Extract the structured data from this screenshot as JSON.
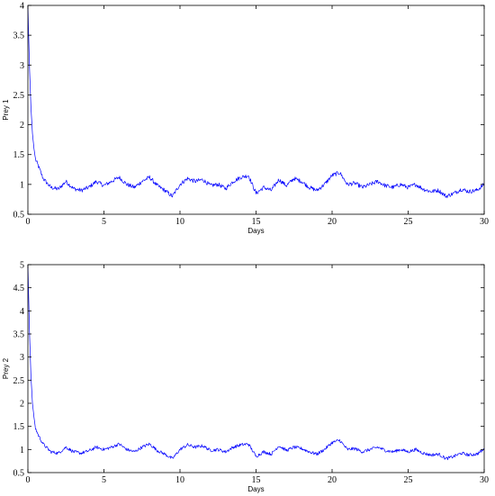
{
  "chart_data": [
    {
      "type": "line",
      "title": "",
      "xlabel": "Days",
      "ylabel": "Prey 1",
      "xlim": [
        0,
        30
      ],
      "ylim": [
        0.5,
        4
      ],
      "xticks": [
        0,
        5,
        10,
        15,
        20,
        25,
        30
      ],
      "yticks": [
        0.5,
        1,
        1.5,
        2,
        2.5,
        3,
        3.5,
        4
      ],
      "xtick_labels": [
        "0",
        "5",
        "10",
        "15",
        "20",
        "25",
        "30"
      ],
      "ytick_labels": [
        "0.5",
        "1",
        "1.5",
        "2",
        "2.5",
        "3",
        "3.5",
        "4"
      ],
      "grid": false,
      "legend": "none",
      "color": "#0000ff",
      "series": [
        {
          "x": [
            0,
            0.1,
            0.2,
            0.3,
            0.4,
            0.5,
            0.7,
            1,
            1.5,
            2,
            2.5,
            3,
            3.5,
            4,
            4.5,
            5,
            5.5,
            6,
            6.5,
            7,
            7.5,
            8,
            8.5,
            9,
            9.5,
            10,
            10.5,
            11,
            11.5,
            12,
            12.5,
            13,
            13.5,
            14,
            14.5,
            15,
            15.5,
            16,
            16.5,
            17,
            17.5,
            18,
            18.5,
            19,
            19.5,
            20,
            20.5,
            21,
            21.5,
            22,
            22.5,
            23,
            23.5,
            24,
            24.5,
            25,
            25.5,
            26,
            26.5,
            27,
            27.5,
            28,
            28.5,
            29,
            29.5,
            30
          ],
          "values": [
            4.0,
            3.0,
            2.3,
            1.85,
            1.6,
            1.42,
            1.3,
            1.1,
            0.95,
            0.92,
            1.05,
            0.93,
            0.9,
            0.95,
            1.05,
            0.98,
            1.05,
            1.12,
            1.0,
            0.95,
            1.05,
            1.12,
            0.98,
            0.9,
            0.8,
            1.0,
            1.1,
            1.05,
            1.08,
            0.98,
            1.0,
            0.93,
            1.05,
            1.12,
            1.15,
            0.85,
            0.95,
            0.9,
            1.08,
            0.98,
            1.1,
            1.05,
            0.95,
            0.9,
            1.0,
            1.15,
            1.2,
            1.0,
            1.02,
            0.95,
            1.0,
            1.05,
            0.98,
            0.95,
            1.0,
            0.95,
            1.0,
            0.92,
            0.88,
            0.9,
            0.8,
            0.85,
            0.92,
            0.88,
            0.9,
            1.0
          ]
        }
      ]
    },
    {
      "type": "line",
      "title": "",
      "xlabel": "Days",
      "ylabel": "Prey 2",
      "xlim": [
        0,
        30
      ],
      "ylim": [
        0.5,
        5
      ],
      "xticks": [
        0,
        5,
        10,
        15,
        20,
        25,
        30
      ],
      "yticks": [
        0.5,
        1,
        1.5,
        2,
        2.5,
        3,
        3.5,
        4,
        4.5,
        5
      ],
      "xtick_labels": [
        "0",
        "5",
        "10",
        "15",
        "20",
        "25",
        "30"
      ],
      "ytick_labels": [
        "0.5",
        "1",
        "1.5",
        "2",
        "2.5",
        "3",
        "3.5",
        "4",
        "4.5",
        "5"
      ],
      "grid": false,
      "legend": "none",
      "color": "#0000ff",
      "series": [
        {
          "x": [
            0,
            0.1,
            0.2,
            0.3,
            0.4,
            0.5,
            0.7,
            1,
            1.5,
            2,
            2.5,
            3,
            3.5,
            4,
            4.5,
            5,
            5.5,
            6,
            6.5,
            7,
            7.5,
            8,
            8.5,
            9,
            9.5,
            10,
            10.5,
            11,
            11.5,
            12,
            12.5,
            13,
            13.5,
            14,
            14.5,
            15,
            15.5,
            16,
            16.5,
            17,
            17.5,
            18,
            18.5,
            19,
            19.5,
            20,
            20.5,
            21,
            21.5,
            22,
            22.5,
            23,
            23.5,
            24,
            24.5,
            25,
            25.5,
            26,
            26.5,
            27,
            27.5,
            28,
            28.5,
            29,
            29.5,
            30
          ],
          "values": [
            5.0,
            3.6,
            2.6,
            2.0,
            1.7,
            1.45,
            1.3,
            1.12,
            0.95,
            0.92,
            1.05,
            0.95,
            0.92,
            0.97,
            1.05,
            1.0,
            1.05,
            1.12,
            1.0,
            0.95,
            1.05,
            1.12,
            0.98,
            0.9,
            0.8,
            1.0,
            1.1,
            1.05,
            1.08,
            0.98,
            1.0,
            0.95,
            1.05,
            1.1,
            1.12,
            0.85,
            0.95,
            0.9,
            1.08,
            0.98,
            1.05,
            1.02,
            0.95,
            0.9,
            1.0,
            1.15,
            1.2,
            1.0,
            1.02,
            0.95,
            1.0,
            1.05,
            0.98,
            0.95,
            1.0,
            0.95,
            1.0,
            0.92,
            0.88,
            0.9,
            0.8,
            0.85,
            0.92,
            0.88,
            0.9,
            1.0
          ]
        }
      ]
    }
  ]
}
